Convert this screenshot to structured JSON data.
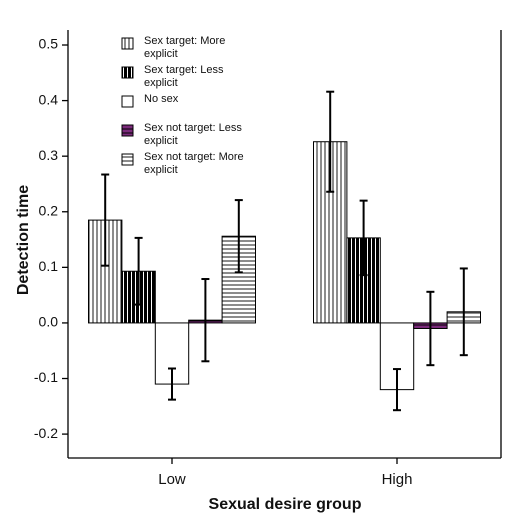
{
  "chart_data": {
    "type": "bar",
    "x_label": "Sexual desire group",
    "y_label": "Detection time",
    "categories": [
      "Low",
      "High"
    ],
    "series": [
      {
        "name": "Sex target: More explicit",
        "pattern": "vertical-thin",
        "color": "#000000",
        "values": [
          0.185,
          0.326
        ],
        "errors": [
          0.082,
          0.09
        ]
      },
      {
        "name": "Sex target: Less explicit",
        "pattern": "vertical-thick",
        "color": "#000000",
        "values": [
          0.093,
          0.153
        ],
        "errors": [
          0.06,
          0.067
        ]
      },
      {
        "name": "No sex",
        "pattern": "none",
        "color": "#ffffff",
        "values": [
          -0.11,
          -0.12
        ],
        "errors": [
          0.028,
          0.037
        ]
      },
      {
        "name": "Sex not target: Less explicit",
        "pattern": "horizontal-filled",
        "color": "#7b2a7b",
        "values": [
          0.005,
          -0.01
        ],
        "errors": [
          0.074,
          0.066
        ]
      },
      {
        "name": "Sex not target: More explicit",
        "pattern": "horizontal-thin",
        "color": "#000000",
        "values": [
          0.156,
          0.02
        ],
        "errors": [
          0.065,
          0.078
        ]
      }
    ],
    "ylim": [
      -0.243,
      0.527
    ],
    "yticks": [
      0.5,
      0.4,
      0.3,
      0.2,
      0.1,
      {
        "value": 0,
        "label": "0.0"
      },
      -0.1,
      -0.2
    ],
    "legend": "top-left"
  }
}
